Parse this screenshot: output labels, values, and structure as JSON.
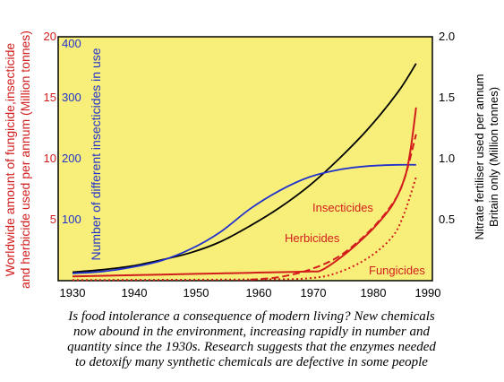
{
  "colors": {
    "plot_bg": "#f8ef7a",
    "red": "#d21d1d",
    "blue": "#2233cc",
    "black": "#000000",
    "page_bg": "#ffffff"
  },
  "chart_data": {
    "type": "line",
    "x_label": "",
    "x_range": [
      1930,
      1990
    ],
    "x_ticks": [
      "1930",
      "1940",
      "1950",
      "1960",
      "1970",
      "1980",
      "1990"
    ],
    "left_outer_axis": {
      "label_line1": "Worldwide amount of fungicide,insecticide",
      "label_line2": "and herbicide used per annum (Million tonnes)",
      "range": [
        0,
        20
      ],
      "ticks": [
        "5",
        "10",
        "15",
        "20"
      ]
    },
    "left_inner_axis": {
      "label": "Number of different insecticides in use",
      "range": [
        0,
        400
      ],
      "ticks": [
        "100",
        "200",
        "300",
        "400"
      ]
    },
    "right_axis": {
      "label_line1": "Nitrate fertiliser used per annum",
      "label_line2": "Britain only (Million tonnes)",
      "range": [
        0,
        2.0
      ],
      "ticks": [
        "0.5",
        "1.0",
        "1.5",
        "2.0"
      ]
    },
    "series": [
      {
        "name": "",
        "axis": "right",
        "color": "#000000",
        "x": [
          1930,
          1935,
          1940,
          1945,
          1950,
          1955,
          1960,
          1965,
          1970,
          1975,
          1980,
          1985,
          1988
        ],
        "y": [
          0.07,
          0.09,
          0.12,
          0.17,
          0.23,
          0.32,
          0.45,
          0.6,
          0.78,
          1.0,
          1.25,
          1.55,
          1.78
        ]
      },
      {
        "name": "",
        "axis": "left_inner",
        "color": "#2233cc",
        "x": [
          1930,
          1935,
          1940,
          1945,
          1950,
          1955,
          1960,
          1965,
          1970,
          1975,
          1980,
          1985,
          1988
        ],
        "y": [
          12,
          15,
          22,
          33,
          52,
          80,
          118,
          148,
          170,
          182,
          188,
          190,
          190
        ]
      },
      {
        "name": "Insecticides",
        "axis": "left_outer",
        "color": "#d21d1d",
        "style": "solid",
        "x": [
          1930,
          1940,
          1950,
          1960,
          1970,
          1972,
          1975,
          1978,
          1981,
          1984,
          1986,
          1987,
          1988
        ],
        "y": [
          0.35,
          0.45,
          0.55,
          0.65,
          0.75,
          0.85,
          1.8,
          3.0,
          4.4,
          6.2,
          8.3,
          10.5,
          14.2
        ]
      },
      {
        "name": "Herbicides",
        "axis": "left_outer",
        "color": "#d21d1d",
        "style": "dashed",
        "x": [
          1960,
          1965,
          1970,
          1975,
          1980,
          1984,
          1986,
          1988
        ],
        "y": [
          0.08,
          0.3,
          0.9,
          2.0,
          4.0,
          6.3,
          8.3,
          12.0
        ]
      },
      {
        "name": "Fungicides",
        "axis": "left_outer",
        "color": "#d21d1d",
        "style": "dotted",
        "x": [
          1930,
          1960,
          1970,
          1975,
          1980,
          1984,
          1986,
          1988
        ],
        "y": [
          0.05,
          0.1,
          0.2,
          0.7,
          1.9,
          3.6,
          5.5,
          8.5
        ]
      }
    ]
  },
  "caption": [
    "Is food intolerance a consequence of modern living? New chemicals",
    "now abound in the environment, increasing rapidly in number and",
    "quantity since the 1930s. Research suggests that the enzymes needed",
    "to detoxify many synthetic chemicals are defective in some people"
  ]
}
